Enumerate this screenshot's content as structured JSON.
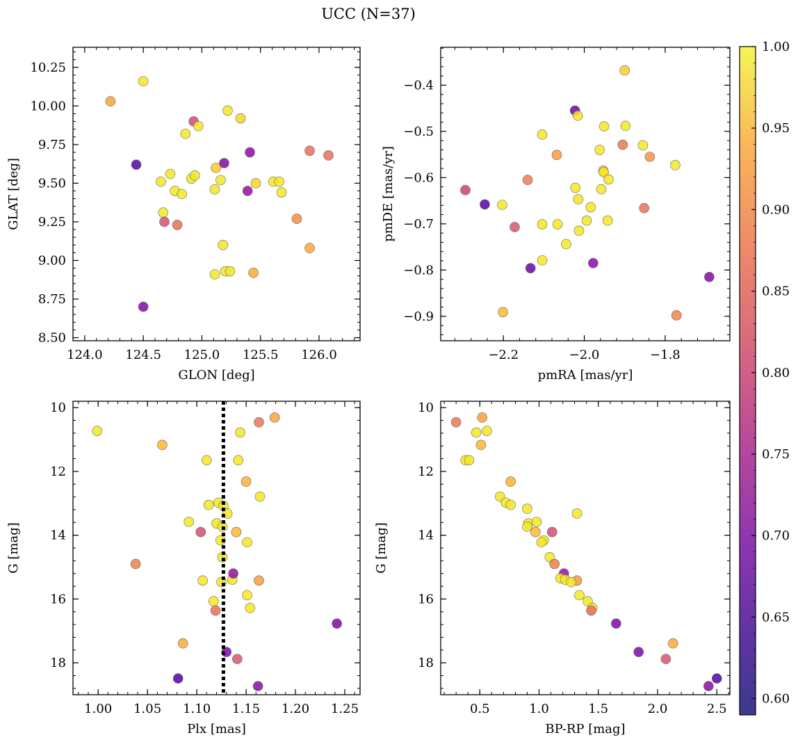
{
  "figure_title": "UCC (N=37)",
  "colorbar": {
    "range": [
      0.59,
      1.0
    ],
    "ticks": [
      "0.60",
      "0.65",
      "0.70",
      "0.75",
      "0.80",
      "0.85",
      "0.90",
      "0.95",
      "1.00"
    ],
    "tick_values": [
      0.6,
      0.65,
      0.7,
      0.75,
      0.8,
      0.85,
      0.9,
      0.95,
      1.0
    ],
    "colormap": "plasma"
  },
  "chart_data": [
    {
      "id": "p1",
      "type": "scatter",
      "xlabel": "GLON [deg]",
      "ylabel": "GLAT [deg]",
      "xlim": [
        123.9,
        126.35
      ],
      "ylim": [
        8.48,
        10.38
      ],
      "xticks": [
        "124.0",
        "124.5",
        "125.0",
        "125.5",
        "126.0"
      ],
      "xtick_values": [
        124.0,
        124.5,
        125.0,
        125.5,
        126.0
      ],
      "yticks": [
        "8.50",
        "8.75",
        "9.00",
        "9.25",
        "9.50",
        "9.75",
        "10.00",
        "10.25"
      ],
      "ytick_values": [
        8.5,
        8.75,
        9.0,
        9.25,
        9.5,
        9.75,
        10.0,
        10.25
      ],
      "points": [
        {
          "x": 124.22,
          "y": 10.03,
          "c": 0.9
        },
        {
          "x": 124.5,
          "y": 10.16,
          "c": 0.98
        },
        {
          "x": 124.44,
          "y": 9.62,
          "c": 0.6
        },
        {
          "x": 124.5,
          "y": 8.7,
          "c": 0.66
        },
        {
          "x": 124.65,
          "y": 9.51,
          "c": 0.98
        },
        {
          "x": 124.67,
          "y": 9.31,
          "c": 0.98
        },
        {
          "x": 124.68,
          "y": 9.25,
          "c": 0.78
        },
        {
          "x": 124.73,
          "y": 9.56,
          "c": 0.98
        },
        {
          "x": 124.77,
          "y": 9.45,
          "c": 0.98
        },
        {
          "x": 124.79,
          "y": 9.23,
          "c": 0.83
        },
        {
          "x": 124.83,
          "y": 9.43,
          "c": 0.98
        },
        {
          "x": 124.86,
          "y": 9.82,
          "c": 0.98
        },
        {
          "x": 124.91,
          "y": 9.53,
          "c": 0.98
        },
        {
          "x": 124.93,
          "y": 9.9,
          "c": 0.77
        },
        {
          "x": 124.94,
          "y": 9.55,
          "c": 0.98
        },
        {
          "x": 124.97,
          "y": 9.87,
          "c": 0.98
        },
        {
          "x": 125.11,
          "y": 9.46,
          "c": 0.98
        },
        {
          "x": 125.11,
          "y": 8.91,
          "c": 0.98
        },
        {
          "x": 125.12,
          "y": 9.6,
          "c": 0.95
        },
        {
          "x": 125.16,
          "y": 9.52,
          "c": 0.98
        },
        {
          "x": 125.18,
          "y": 9.1,
          "c": 0.98
        },
        {
          "x": 125.19,
          "y": 9.63,
          "c": 0.66
        },
        {
          "x": 125.2,
          "y": 8.93,
          "c": 0.98
        },
        {
          "x": 125.22,
          "y": 9.97,
          "c": 0.98
        },
        {
          "x": 125.24,
          "y": 8.93,
          "c": 0.98
        },
        {
          "x": 125.33,
          "y": 9.92,
          "c": 0.96
        },
        {
          "x": 125.39,
          "y": 9.45,
          "c": 0.68
        },
        {
          "x": 125.41,
          "y": 9.7,
          "c": 0.67
        },
        {
          "x": 125.44,
          "y": 8.92,
          "c": 0.91
        },
        {
          "x": 125.46,
          "y": 9.5,
          "c": 0.96
        },
        {
          "x": 125.61,
          "y": 9.51,
          "c": 0.98
        },
        {
          "x": 125.66,
          "y": 9.51,
          "c": 0.98
        },
        {
          "x": 125.68,
          "y": 9.44,
          "c": 0.98
        },
        {
          "x": 125.81,
          "y": 9.27,
          "c": 0.87
        },
        {
          "x": 125.92,
          "y": 9.71,
          "c": 0.83
        },
        {
          "x": 125.92,
          "y": 9.08,
          "c": 0.91
        },
        {
          "x": 126.08,
          "y": 9.68,
          "c": 0.83
        }
      ]
    },
    {
      "id": "p2",
      "type": "scatter",
      "xlabel": "pmRA [mas/yr]",
      "ylabel": "pmDE [mas/yr]",
      "xlim": [
        -2.355,
        -1.64
      ],
      "ylim": [
        -0.953,
        -0.318
      ],
      "xticks": [
        "−2.2",
        "−2.0",
        "−1.8"
      ],
      "xtick_values": [
        -2.2,
        -2.0,
        -1.8
      ],
      "yticks": [
        "−0.9",
        "−0.8",
        "−0.7",
        "−0.6",
        "−0.5",
        "−0.4"
      ],
      "ytick_values": [
        -0.9,
        -0.8,
        -0.7,
        -0.6,
        -0.5,
        -0.4
      ],
      "points": [
        {
          "x": -2.294,
          "y": -0.627,
          "c": 0.76
        },
        {
          "x": -2.246,
          "y": -0.658,
          "c": 0.6
        },
        {
          "x": -2.203,
          "y": -0.659,
          "c": 0.98
        },
        {
          "x": -2.201,
          "y": -0.891,
          "c": 0.93
        },
        {
          "x": -2.172,
          "y": -0.707,
          "c": 0.79
        },
        {
          "x": -2.14,
          "y": -0.605,
          "c": 0.85
        },
        {
          "x": -2.133,
          "y": -0.796,
          "c": 0.63
        },
        {
          "x": -2.104,
          "y": -0.507,
          "c": 0.98
        },
        {
          "x": -2.104,
          "y": -0.701,
          "c": 0.98
        },
        {
          "x": -2.104,
          "y": -0.779,
          "c": 0.98
        },
        {
          "x": -2.068,
          "y": -0.551,
          "c": 0.89
        },
        {
          "x": -2.066,
          "y": -0.701,
          "c": 0.98
        },
        {
          "x": -2.045,
          "y": -0.744,
          "c": 0.98
        },
        {
          "x": -2.023,
          "y": -0.455,
          "c": 0.63
        },
        {
          "x": -2.022,
          "y": -0.622,
          "c": 0.98
        },
        {
          "x": -2.016,
          "y": -0.466,
          "c": 0.98
        },
        {
          "x": -2.015,
          "y": -0.647,
          "c": 0.98
        },
        {
          "x": -2.013,
          "y": -0.715,
          "c": 0.98
        },
        {
          "x": -1.994,
          "y": -0.693,
          "c": 0.98
        },
        {
          "x": -1.984,
          "y": -0.664,
          "c": 0.98
        },
        {
          "x": -1.978,
          "y": -0.785,
          "c": 0.67
        },
        {
          "x": -1.962,
          "y": -0.54,
          "c": 0.98
        },
        {
          "x": -1.958,
          "y": -0.625,
          "c": 0.98
        },
        {
          "x": -1.953,
          "y": -0.585,
          "c": 0.95
        },
        {
          "x": -1.952,
          "y": -0.588,
          "c": 0.98
        },
        {
          "x": -1.951,
          "y": -0.489,
          "c": 0.98
        },
        {
          "x": -1.942,
          "y": -0.693,
          "c": 0.98
        },
        {
          "x": -1.94,
          "y": -0.604,
          "c": 0.98
        },
        {
          "x": -1.905,
          "y": -0.529,
          "c": 0.84
        },
        {
          "x": -1.9,
          "y": -0.368,
          "c": 0.95
        },
        {
          "x": -1.898,
          "y": -0.488,
          "c": 0.98
        },
        {
          "x": -1.855,
          "y": -0.53,
          "c": 0.98
        },
        {
          "x": -1.852,
          "y": -0.666,
          "c": 0.83
        },
        {
          "x": -1.838,
          "y": -0.555,
          "c": 0.88
        },
        {
          "x": -1.775,
          "y": -0.573,
          "c": 0.98
        },
        {
          "x": -1.772,
          "y": -0.898,
          "c": 0.86
        },
        {
          "x": -1.691,
          "y": -0.815,
          "c": 0.66
        }
      ]
    },
    {
      "id": "p3",
      "type": "scatter",
      "xlabel": "Plx [mas]",
      "ylabel": "G [mag]",
      "xlim": [
        0.9745,
        1.2655
      ],
      "ylim": [
        19.0,
        9.8
      ],
      "y_inverted": true,
      "xticks": [
        "1.00",
        "1.05",
        "1.10",
        "1.15",
        "1.20",
        "1.25"
      ],
      "xtick_values": [
        1.0,
        1.05,
        1.1,
        1.15,
        1.2,
        1.25
      ],
      "yticks": [
        "10",
        "12",
        "14",
        "16",
        "18"
      ],
      "ytick_values": [
        10,
        12,
        14,
        16,
        18
      ],
      "vline": {
        "x": 1.127,
        "style": "dotted"
      },
      "points": [
        {
          "x": 0.999,
          "y": 10.73,
          "c": 0.98
        },
        {
          "x": 1.065,
          "y": 11.17,
          "c": 0.93
        },
        {
          "x": 1.038,
          "y": 14.9,
          "c": 0.85
        },
        {
          "x": 1.086,
          "y": 17.39,
          "c": 0.91
        },
        {
          "x": 1.081,
          "y": 18.49,
          "c": 0.6
        },
        {
          "x": 1.092,
          "y": 13.58,
          "c": 0.98
        },
        {
          "x": 1.104,
          "y": 13.9,
          "c": 0.78
        },
        {
          "x": 1.106,
          "y": 15.42,
          "c": 0.98
        },
        {
          "x": 1.11,
          "y": 11.65,
          "c": 0.98
        },
        {
          "x": 1.112,
          "y": 13.05,
          "c": 0.98
        },
        {
          "x": 1.117,
          "y": 16.07,
          "c": 0.98
        },
        {
          "x": 1.119,
          "y": 16.36,
          "c": 0.83
        },
        {
          "x": 1.12,
          "y": 13.63,
          "c": 0.98
        },
        {
          "x": 1.122,
          "y": 12.98,
          "c": 0.98
        },
        {
          "x": 1.124,
          "y": 14.16,
          "c": 0.98
        },
        {
          "x": 1.125,
          "y": 15.47,
          "c": 0.98
        },
        {
          "x": 1.126,
          "y": 13.73,
          "c": 0.98
        },
        {
          "x": 1.126,
          "y": 14.69,
          "c": 0.98
        },
        {
          "x": 1.127,
          "y": 13.08,
          "c": 0.98
        },
        {
          "x": 1.13,
          "y": 17.66,
          "c": 0.65
        },
        {
          "x": 1.131,
          "y": 13.32,
          "c": 0.98
        },
        {
          "x": 1.136,
          "y": 15.39,
          "c": 0.98
        },
        {
          "x": 1.137,
          "y": 15.2,
          "c": 0.68
        },
        {
          "x": 1.14,
          "y": 13.9,
          "c": 0.93
        },
        {
          "x": 1.141,
          "y": 17.88,
          "c": 0.79
        },
        {
          "x": 1.142,
          "y": 11.65,
          "c": 0.98
        },
        {
          "x": 1.144,
          "y": 10.78,
          "c": 0.98
        },
        {
          "x": 1.15,
          "y": 12.32,
          "c": 0.92
        },
        {
          "x": 1.151,
          "y": 14.22,
          "c": 0.98
        },
        {
          "x": 1.151,
          "y": 15.88,
          "c": 0.98
        },
        {
          "x": 1.154,
          "y": 16.28,
          "c": 0.98
        },
        {
          "x": 1.162,
          "y": 18.73,
          "c": 0.67
        },
        {
          "x": 1.163,
          "y": 15.42,
          "c": 0.89
        },
        {
          "x": 1.163,
          "y": 10.46,
          "c": 0.84
        },
        {
          "x": 1.164,
          "y": 12.79,
          "c": 0.98
        },
        {
          "x": 1.179,
          "y": 10.31,
          "c": 0.9
        },
        {
          "x": 1.242,
          "y": 16.77,
          "c": 0.65
        }
      ]
    },
    {
      "id": "p4",
      "type": "scatter",
      "xlabel": "BP-RP [mag]",
      "ylabel": "G [mag]",
      "xlim": [
        0.17,
        2.61
      ],
      "ylim": [
        19.0,
        9.8
      ],
      "y_inverted": true,
      "xticks": [
        "0.5",
        "1.0",
        "1.5",
        "2.0",
        "2.5"
      ],
      "xtick_values": [
        0.5,
        1.0,
        1.5,
        2.0,
        2.5
      ],
      "yticks": [
        "10",
        "12",
        "14",
        "16",
        "18"
      ],
      "ytick_values": [
        10,
        12,
        14,
        16,
        18
      ],
      "points": [
        {
          "x": 0.3,
          "y": 10.46,
          "c": 0.84
        },
        {
          "x": 0.52,
          "y": 10.31,
          "c": 0.9
        },
        {
          "x": 0.47,
          "y": 10.78,
          "c": 0.98
        },
        {
          "x": 0.56,
          "y": 10.73,
          "c": 0.98
        },
        {
          "x": 0.51,
          "y": 11.17,
          "c": 0.93
        },
        {
          "x": 0.38,
          "y": 11.65,
          "c": 0.98
        },
        {
          "x": 0.41,
          "y": 11.65,
          "c": 0.98
        },
        {
          "x": 0.76,
          "y": 12.32,
          "c": 0.92
        },
        {
          "x": 0.67,
          "y": 12.79,
          "c": 0.98
        },
        {
          "x": 0.72,
          "y": 12.98,
          "c": 0.98
        },
        {
          "x": 0.76,
          "y": 13.05,
          "c": 0.98
        },
        {
          "x": 0.9,
          "y": 13.17,
          "c": 0.98
        },
        {
          "x": 1.32,
          "y": 13.32,
          "c": 0.98
        },
        {
          "x": 0.91,
          "y": 13.63,
          "c": 0.98
        },
        {
          "x": 0.98,
          "y": 13.58,
          "c": 0.98
        },
        {
          "x": 0.9,
          "y": 13.73,
          "c": 0.98
        },
        {
          "x": 0.97,
          "y": 13.9,
          "c": 0.93
        },
        {
          "x": 1.11,
          "y": 13.9,
          "c": 0.78
        },
        {
          "x": 1.04,
          "y": 14.16,
          "c": 0.98
        },
        {
          "x": 1.02,
          "y": 14.22,
          "c": 0.98
        },
        {
          "x": 1.09,
          "y": 14.69,
          "c": 0.98
        },
        {
          "x": 1.13,
          "y": 14.9,
          "c": 0.85
        },
        {
          "x": 1.21,
          "y": 15.2,
          "c": 0.68
        },
        {
          "x": 1.18,
          "y": 15.35,
          "c": 0.98
        },
        {
          "x": 1.22,
          "y": 15.39,
          "c": 0.98
        },
        {
          "x": 1.32,
          "y": 15.42,
          "c": 0.89
        },
        {
          "x": 1.27,
          "y": 15.47,
          "c": 0.98
        },
        {
          "x": 1.34,
          "y": 15.88,
          "c": 0.98
        },
        {
          "x": 1.41,
          "y": 16.07,
          "c": 0.98
        },
        {
          "x": 1.45,
          "y": 16.28,
          "c": 0.98
        },
        {
          "x": 1.44,
          "y": 16.36,
          "c": 0.83
        },
        {
          "x": 1.65,
          "y": 16.77,
          "c": 0.65
        },
        {
          "x": 2.13,
          "y": 17.39,
          "c": 0.91
        },
        {
          "x": 1.84,
          "y": 17.66,
          "c": 0.65
        },
        {
          "x": 2.07,
          "y": 17.88,
          "c": 0.79
        },
        {
          "x": 2.5,
          "y": 18.49,
          "c": 0.6
        },
        {
          "x": 2.43,
          "y": 18.73,
          "c": 0.67
        }
      ]
    }
  ]
}
